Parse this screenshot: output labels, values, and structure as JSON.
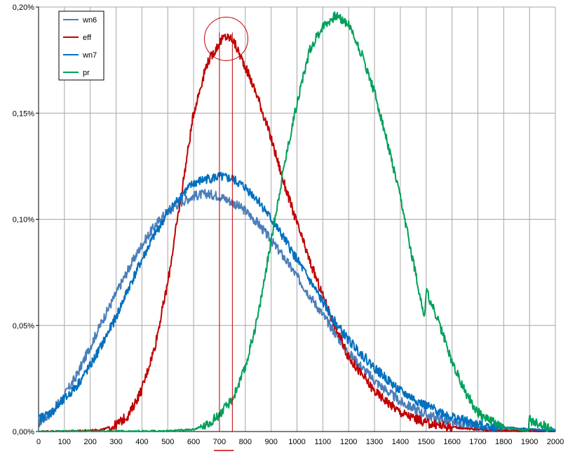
{
  "chart_data": {
    "type": "line",
    "title": "",
    "xlabel": "",
    "ylabel": "",
    "xlim": [
      0,
      2000
    ],
    "ylim": [
      0,
      0.002
    ],
    "x_ticks": [
      0,
      100,
      200,
      300,
      400,
      500,
      600,
      700,
      800,
      900,
      1000,
      1100,
      1200,
      1300,
      1400,
      1500,
      1600,
      1700,
      1800,
      1900,
      2000
    ],
    "x_tick_labels": [
      "0",
      "100",
      "200",
      "300",
      "400",
      "500",
      "600",
      "700",
      "800",
      "900",
      "1000",
      "1100",
      "1200",
      "1300",
      "1400",
      "1500",
      "1600",
      "1700",
      "1800",
      "1900",
      "2000"
    ],
    "y_ticks": [
      0,
      0.0005,
      0.001,
      0.0015,
      0.002
    ],
    "y_tick_labels": [
      "0,00%",
      "0,05%",
      "0,10%",
      "0,15%",
      "0,20%"
    ],
    "grid": true,
    "legend_position": "top-left",
    "series": [
      {
        "name": "wn6",
        "color": "#4a7ebb",
        "x": [
          0,
          50,
          100,
          150,
          200,
          250,
          300,
          350,
          400,
          450,
          500,
          550,
          600,
          650,
          700,
          750,
          800,
          850,
          900,
          950,
          1000,
          1050,
          1100,
          1150,
          1200,
          1300,
          1400,
          1500,
          1600,
          1700,
          1800,
          1900,
          2000
        ],
        "y": [
          4e-05,
          9e-05,
          0.00017,
          0.00027,
          0.0004,
          0.00053,
          0.00065,
          0.00077,
          0.00088,
          0.00097,
          0.00104,
          0.00108,
          0.00111,
          0.00112,
          0.00111,
          0.00108,
          0.00104,
          0.00098,
          0.0009,
          0.00082,
          0.00073,
          0.00064,
          0.00055,
          0.00046,
          0.00037,
          0.00024,
          0.00014,
          8e-05,
          4e-05,
          2e-05,
          1e-05,
          5e-06,
          3e-06
        ]
      },
      {
        "name": "eff",
        "color": "#c00000",
        "x": [
          0,
          100,
          200,
          250,
          300,
          350,
          400,
          450,
          500,
          550,
          600,
          650,
          700,
          720,
          750,
          800,
          850,
          900,
          950,
          1000,
          1050,
          1100,
          1150,
          1200,
          1300,
          1400,
          1500,
          1600,
          1700,
          1800,
          1900,
          2000
        ],
        "y": [
          0,
          1e-06,
          5e-06,
          1e-05,
          3e-05,
          8e-05,
          0.0002,
          0.0004,
          0.0007,
          0.0011,
          0.0015,
          0.00173,
          0.00183,
          0.00186,
          0.00185,
          0.00172,
          0.00157,
          0.00138,
          0.00117,
          0.00098,
          0.0008,
          0.00064,
          0.00049,
          0.00035,
          0.00019,
          9e-05,
          4e-05,
          2e-05,
          1e-05,
          4e-06,
          2e-06,
          1e-06
        ]
      },
      {
        "name": "wn7",
        "color": "#0070c0",
        "x": [
          0,
          50,
          100,
          150,
          200,
          250,
          300,
          350,
          400,
          450,
          500,
          550,
          600,
          650,
          700,
          750,
          800,
          850,
          900,
          950,
          1000,
          1050,
          1100,
          1150,
          1200,
          1300,
          1400,
          1500,
          1600,
          1700,
          1800,
          1900,
          2000
        ],
        "y": [
          6e-05,
          9e-05,
          0.00015,
          0.00022,
          0.00031,
          0.00042,
          0.00054,
          0.00068,
          0.00081,
          0.00093,
          0.00103,
          0.00111,
          0.00117,
          0.00119,
          0.0012,
          0.00119,
          0.00115,
          0.00109,
          0.001,
          0.00091,
          0.00081,
          0.00071,
          0.00061,
          0.00051,
          0.00043,
          0.0003,
          0.00019,
          0.00012,
          7e-05,
          3e-05,
          2e-05,
          1e-05,
          5e-06
        ]
      },
      {
        "name": "pr",
        "color": "#00a05a",
        "x": [
          0,
          500,
          600,
          650,
          700,
          750,
          800,
          850,
          900,
          950,
          1000,
          1050,
          1100,
          1150,
          1200,
          1250,
          1300,
          1350,
          1400,
          1450,
          1495,
          1500,
          1505,
          1550,
          1600,
          1650,
          1700,
          1750,
          1800,
          1850,
          1895,
          1900,
          1905,
          1950,
          2000
        ],
        "y": [
          0,
          2e-06,
          1e-05,
          3e-05,
          8e-05,
          0.00015,
          0.0003,
          0.00055,
          0.0009,
          0.00125,
          0.00155,
          0.0018,
          0.00191,
          0.00196,
          0.00192,
          0.00178,
          0.0016,
          0.00136,
          0.0011,
          0.0008,
          0.00053,
          0.00067,
          0.00065,
          0.00051,
          0.00033,
          0.00019,
          9e-05,
          5e-05,
          2e-05,
          1e-05,
          4e-06,
          6e-05,
          5e-05,
          3e-05,
          1e-05
        ]
      }
    ],
    "annotations": [
      {
        "type": "circle",
        "center": [
          726,
          0.00185
        ],
        "label": ""
      },
      {
        "type": "vline",
        "x": 700
      },
      {
        "type": "vline",
        "x": 750
      },
      {
        "type": "underline",
        "from": 700,
        "to": 750
      }
    ]
  }
}
